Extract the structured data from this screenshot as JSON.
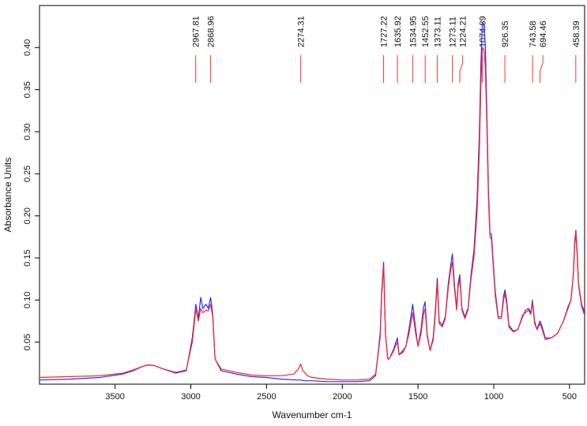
{
  "chart_data": {
    "type": "line",
    "xlabel": "Wavenumber cm-1",
    "ylabel": "Absorbance Units",
    "xlim": [
      3999,
      400
    ],
    "ylim": [
      0.0,
      0.45
    ],
    "x_reversed": true,
    "x_ticks": [
      3500,
      3000,
      2500,
      2000,
      1500,
      1000,
      500
    ],
    "y_ticks": [
      0.05,
      0.1,
      0.15,
      0.2,
      0.25,
      0.3,
      0.35,
      0.4
    ],
    "y_tick_labels": [
      "0.05",
      "0.10",
      "0.15",
      "0.20",
      "0.25",
      "0.30",
      "0.35",
      "0.40"
    ],
    "grid": false,
    "colors": {
      "blue": "#2b2bff",
      "red": "#ff2020",
      "peak_marker": "#ff3333",
      "axis": "#000000"
    },
    "peak_labels": [
      "2967.81",
      "2868.96",
      "2274.31",
      "1727.22",
      "1635.92",
      "1534.95",
      "1452.55",
      "1373.11",
      "1273.11",
      "1224.21",
      "1074.89",
      "926.35",
      "743.58",
      "694.46",
      "458.39"
    ],
    "peak_wavenumbers": [
      2967.81,
      2868.96,
      2274.31,
      1727.22,
      1635.92,
      1534.95,
      1452.55,
      1373.11,
      1273.11,
      1224.21,
      1074.89,
      926.35,
      743.58,
      694.46,
      458.39
    ],
    "series": [
      {
        "color": "#2b2bff",
        "x": [
          3999,
          3800,
          3600,
          3450,
          3380,
          3320,
          3280,
          3240,
          3180,
          3100,
          3030,
          2990,
          2967,
          2950,
          2935,
          2920,
          2900,
          2885,
          2869,
          2855,
          2840,
          2800,
          2700,
          2600,
          2500,
          2400,
          2300,
          2274,
          2250,
          2200,
          2100,
          2000,
          1900,
          1820,
          1780,
          1750,
          1740,
          1727,
          1715,
          1700,
          1690,
          1660,
          1650,
          1636,
          1625,
          1600,
          1580,
          1560,
          1535,
          1515,
          1500,
          1480,
          1465,
          1453,
          1440,
          1420,
          1400,
          1385,
          1373,
          1360,
          1340,
          1320,
          1300,
          1285,
          1273,
          1260,
          1245,
          1235,
          1224,
          1210,
          1190,
          1170,
          1150,
          1130,
          1110,
          1095,
          1085,
          1075,
          1065,
          1055,
          1045,
          1035,
          1025,
          1015,
          1005,
          990,
          970,
          950,
          935,
          926,
          915,
          900,
          870,
          840,
          810,
          790,
          770,
          755,
          744,
          730,
          715,
          705,
          694,
          680,
          660,
          620,
          580,
          540,
          510,
          490,
          475,
          465,
          458,
          450,
          440,
          420,
          400
        ],
        "y": [
          0.005,
          0.006,
          0.008,
          0.012,
          0.016,
          0.021,
          0.023,
          0.022,
          0.018,
          0.013,
          0.016,
          0.055,
          0.095,
          0.078,
          0.103,
          0.09,
          0.095,
          0.09,
          0.103,
          0.083,
          0.03,
          0.016,
          0.012,
          0.009,
          0.008,
          0.006,
          0.005,
          0.005,
          0.004,
          0.004,
          0.003,
          0.003,
          0.003,
          0.004,
          0.01,
          0.06,
          0.11,
          0.145,
          0.06,
          0.03,
          0.03,
          0.042,
          0.048,
          0.055,
          0.035,
          0.038,
          0.045,
          0.065,
          0.095,
          0.065,
          0.045,
          0.065,
          0.09,
          0.098,
          0.06,
          0.04,
          0.055,
          0.09,
          0.126,
          0.075,
          0.07,
          0.08,
          0.12,
          0.14,
          0.155,
          0.12,
          0.09,
          0.12,
          0.13,
          0.09,
          0.08,
          0.09,
          0.13,
          0.16,
          0.22,
          0.3,
          0.38,
          0.43,
          0.428,
          0.4,
          0.32,
          0.23,
          0.18,
          0.178,
          0.15,
          0.11,
          0.08,
          0.08,
          0.105,
          0.112,
          0.1,
          0.07,
          0.063,
          0.065,
          0.08,
          0.088,
          0.09,
          0.085,
          0.1,
          0.075,
          0.065,
          0.07,
          0.075,
          0.068,
          0.055,
          0.055,
          0.06,
          0.075,
          0.09,
          0.1,
          0.13,
          0.17,
          0.183,
          0.16,
          0.12,
          0.095,
          0.085
        ]
      },
      {
        "color": "#ff2020",
        "x": [
          3999,
          3800,
          3600,
          3450,
          3380,
          3320,
          3280,
          3240,
          3180,
          3100,
          3030,
          2990,
          2967,
          2950,
          2935,
          2920,
          2900,
          2885,
          2869,
          2855,
          2840,
          2800,
          2700,
          2600,
          2500,
          2400,
          2320,
          2290,
          2274,
          2260,
          2230,
          2200,
          2100,
          2000,
          1900,
          1820,
          1780,
          1750,
          1740,
          1727,
          1715,
          1700,
          1690,
          1660,
          1650,
          1636,
          1625,
          1600,
          1580,
          1560,
          1535,
          1515,
          1500,
          1480,
          1465,
          1453,
          1440,
          1420,
          1400,
          1385,
          1373,
          1360,
          1340,
          1320,
          1300,
          1285,
          1273,
          1260,
          1245,
          1235,
          1224,
          1210,
          1190,
          1170,
          1150,
          1130,
          1110,
          1095,
          1085,
          1075,
          1065,
          1055,
          1045,
          1035,
          1025,
          1015,
          1005,
          990,
          970,
          950,
          935,
          926,
          915,
          900,
          870,
          840,
          810,
          790,
          770,
          755,
          744,
          730,
          715,
          705,
          694,
          680,
          660,
          620,
          580,
          540,
          510,
          490,
          475,
          465,
          458,
          450,
          440,
          420,
          400
        ],
        "y": [
          0.008,
          0.009,
          0.01,
          0.013,
          0.017,
          0.021,
          0.023,
          0.022,
          0.018,
          0.014,
          0.017,
          0.05,
          0.09,
          0.075,
          0.09,
          0.085,
          0.088,
          0.087,
          0.095,
          0.08,
          0.03,
          0.018,
          0.014,
          0.011,
          0.01,
          0.01,
          0.012,
          0.018,
          0.024,
          0.016,
          0.01,
          0.008,
          0.006,
          0.005,
          0.005,
          0.006,
          0.012,
          0.055,
          0.105,
          0.14,
          0.06,
          0.03,
          0.03,
          0.04,
          0.045,
          0.05,
          0.035,
          0.04,
          0.045,
          0.06,
          0.085,
          0.06,
          0.045,
          0.06,
          0.082,
          0.09,
          0.058,
          0.04,
          0.052,
          0.085,
          0.12,
          0.072,
          0.068,
          0.078,
          0.115,
          0.135,
          0.145,
          0.115,
          0.088,
          0.115,
          0.125,
          0.088,
          0.078,
          0.088,
          0.125,
          0.152,
          0.205,
          0.28,
          0.355,
          0.4,
          0.398,
          0.375,
          0.305,
          0.22,
          0.175,
          0.172,
          0.145,
          0.105,
          0.078,
          0.078,
          0.1,
          0.108,
          0.095,
          0.068,
          0.062,
          0.065,
          0.082,
          0.085,
          0.088,
          0.083,
          0.098,
          0.072,
          0.065,
          0.068,
          0.072,
          0.065,
          0.053,
          0.055,
          0.06,
          0.075,
          0.092,
          0.1,
          0.128,
          0.165,
          0.18,
          0.155,
          0.118,
          0.092,
          0.082
        ]
      }
    ]
  }
}
